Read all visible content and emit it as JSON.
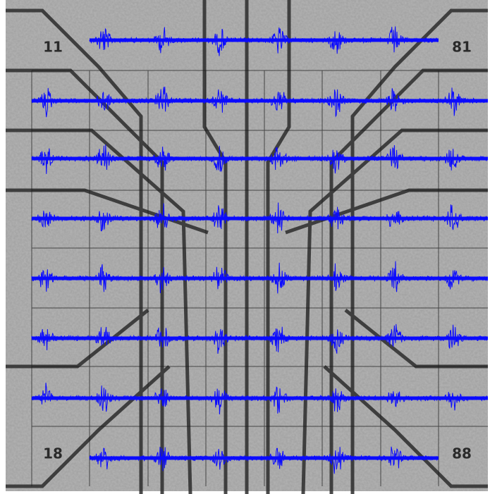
{
  "corner_labels": [
    "11",
    "81",
    "18",
    "88"
  ]
}
